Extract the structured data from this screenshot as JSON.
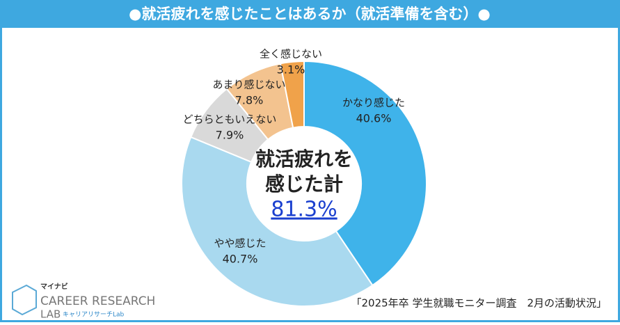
{
  "chart_data": {
    "type": "donut",
    "title": "●就活疲れを感じたことはあるか（就活準備を含む）●",
    "categories": [
      "かなり感じた",
      "やや感じた",
      "どちらともいえない",
      "あまり感じない",
      "全く感じない"
    ],
    "values": [
      40.6,
      40.7,
      7.9,
      7.8,
      3.1
    ],
    "value_labels": [
      "40.6%",
      "40.7%",
      "7.9%",
      "7.8%",
      "3.1%"
    ],
    "colors": [
      "#3fb3ea",
      "#a9d9ef",
      "#d9d9d9",
      "#f3c38f",
      "#f0a24a"
    ],
    "center_text": [
      "就活疲れを",
      "感じた計"
    ],
    "center_total": "81.3%",
    "source": "「2025年卒 学生就職モニター調査　2月の活動状況」",
    "logo": {
      "brand": "マイナビ",
      "line1": "CAREER RESEARCH",
      "line2": "LAB",
      "sub": "キャリアリサーチLab"
    }
  }
}
